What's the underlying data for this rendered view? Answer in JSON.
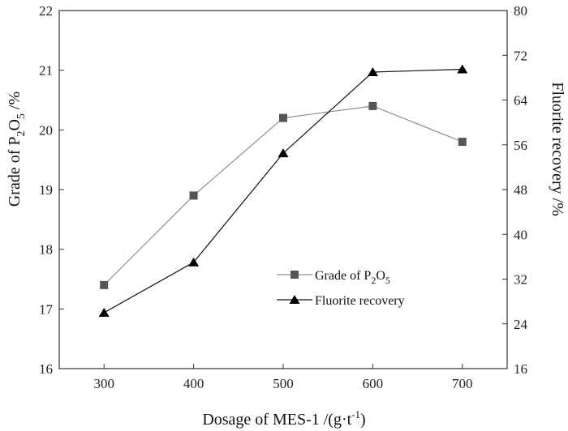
{
  "chart_data": {
    "type": "line",
    "x": [
      300,
      400,
      500,
      600,
      700
    ],
    "xlim": [
      250,
      750
    ],
    "xticks": [
      "300",
      "400",
      "500",
      "600",
      "700"
    ],
    "xlabel": "Dosage of MES-1 /(g·t",
    "xlabel_sup": "-1",
    "xlabel_close": ")",
    "ylabel_left": {
      "prefix": "Grade of P",
      "sub1": "2",
      "mid": "O",
      "sub2": "5",
      "suffix": " /%"
    },
    "ylabel_right": "Fluorite recovery /%",
    "ylim_left": [
      16,
      22
    ],
    "ylim_right": [
      16,
      80
    ],
    "yticks_left": [
      "16",
      "17",
      "18",
      "19",
      "20",
      "21",
      "22"
    ],
    "yticks_right": [
      "16",
      "24",
      "32",
      "40",
      "48",
      "56",
      "64",
      "72",
      "80"
    ],
    "series": [
      {
        "name": "Grade of P2O5",
        "legend": {
          "prefix": "Grade of P",
          "sub1": "2",
          "mid": "O",
          "sub2": "5"
        },
        "axis": "left",
        "marker": "square",
        "line_color": "#8c8c8c",
        "marker_color": "#555555",
        "values": [
          17.4,
          18.9,
          20.2,
          20.4,
          19.8
        ]
      },
      {
        "name": "Fluorite recovery",
        "legend": {
          "prefix": "Fluorite recovery"
        },
        "axis": "right",
        "marker": "triangle",
        "line_color": "#111111",
        "marker_color": "#000000",
        "values": [
          26.0,
          35.0,
          54.5,
          69.0,
          69.5
        ]
      }
    ],
    "legend_position": "bottom-center"
  }
}
